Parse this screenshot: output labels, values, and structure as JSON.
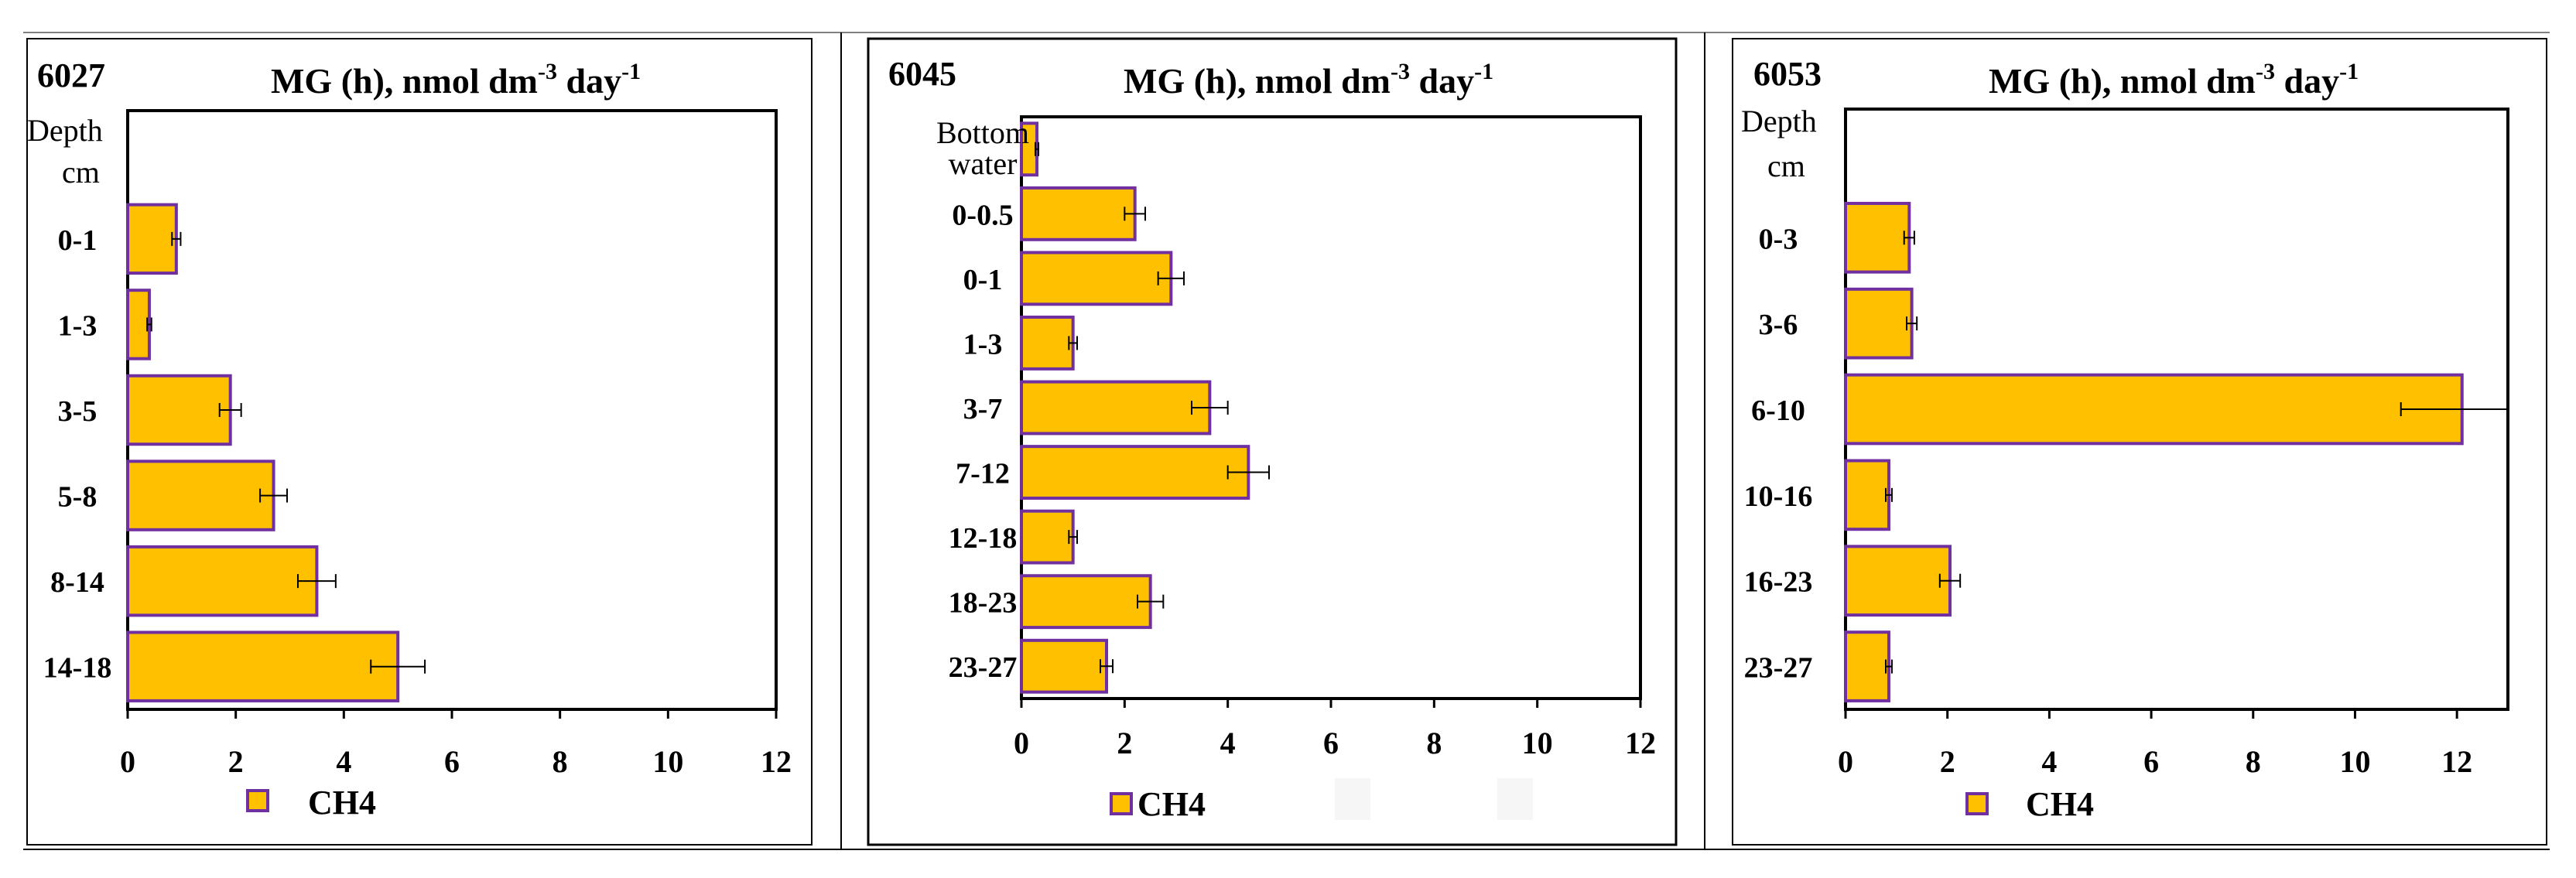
{
  "colors": {
    "bar_fill": "#FFC000",
    "bar_edge": "#7030A0",
    "axis": "#000000",
    "error": "#000000"
  },
  "chart_data": [
    {
      "type": "bar",
      "orientation": "horizontal",
      "station": "6027",
      "title": "MG (h), nmol dm",
      "title_exp1": "-3",
      "title_mid": " day",
      "title_exp2": "-1",
      "ylabel_line1": "Depth",
      "ylabel_line2": "cm",
      "categories": [
        "0-1",
        "1-3",
        "3-5",
        "5-8",
        "8-14",
        "14-18"
      ],
      "series": [
        {
          "name": "CH4",
          "values": [
            0.9,
            0.4,
            1.9,
            2.7,
            3.5,
            5.0
          ],
          "errors": [
            0.08,
            0.04,
            0.2,
            0.25,
            0.35,
            0.5
          ]
        }
      ],
      "xlim": [
        0,
        12
      ],
      "xticks": [
        "0",
        "2",
        "4",
        "6",
        "8",
        "10",
        "12"
      ],
      "legend": "CH4",
      "legend_position": "bottom-left"
    },
    {
      "type": "bar",
      "orientation": "horizontal",
      "station": "6045",
      "title": "MG (h), nmol dm",
      "title_exp1": "-3",
      "title_mid": " day",
      "title_exp2": "-1",
      "ylabel_line1": "",
      "ylabel_line2": "",
      "categories": [
        "Bottom water",
        "0-0.5",
        "0-1",
        "1-3",
        "3-7",
        "7-12",
        "12-18",
        "18-23",
        "23-27"
      ],
      "series": [
        {
          "name": "CH4",
          "values": [
            0.3,
            2.2,
            2.9,
            1.0,
            3.65,
            4.4,
            1.0,
            2.5,
            1.65
          ],
          "errors": [
            0.03,
            0.2,
            0.25,
            0.08,
            0.35,
            0.4,
            0.08,
            0.25,
            0.12
          ]
        }
      ],
      "xlim": [
        0,
        12
      ],
      "xticks": [
        "0",
        "2",
        "4",
        "6",
        "8",
        "10",
        "12"
      ],
      "legend": "CH4",
      "legend_position": "bottom-left"
    },
    {
      "type": "bar",
      "orientation": "horizontal",
      "station": "6053",
      "title": "MG (h), nmol dm",
      "title_exp1": "-3",
      "title_mid": " day",
      "title_exp2": "-1",
      "ylabel_line1": "Depth",
      "ylabel_line2": "cm",
      "categories": [
        "0-3",
        "3-6",
        "6-10",
        "10-16",
        "16-23",
        "23-27"
      ],
      "series": [
        {
          "name": "CH4",
          "values": [
            1.25,
            1.3,
            12.1,
            0.85,
            2.05,
            0.85
          ],
          "errors": [
            0.1,
            0.1,
            1.2,
            0.06,
            0.2,
            0.06
          ]
        }
      ],
      "xlim": [
        0,
        13
      ],
      "xticks": [
        "0",
        "2",
        "4",
        "6",
        "8",
        "10",
        "12"
      ],
      "legend": "CH4",
      "legend_position": "bottom-left"
    }
  ]
}
